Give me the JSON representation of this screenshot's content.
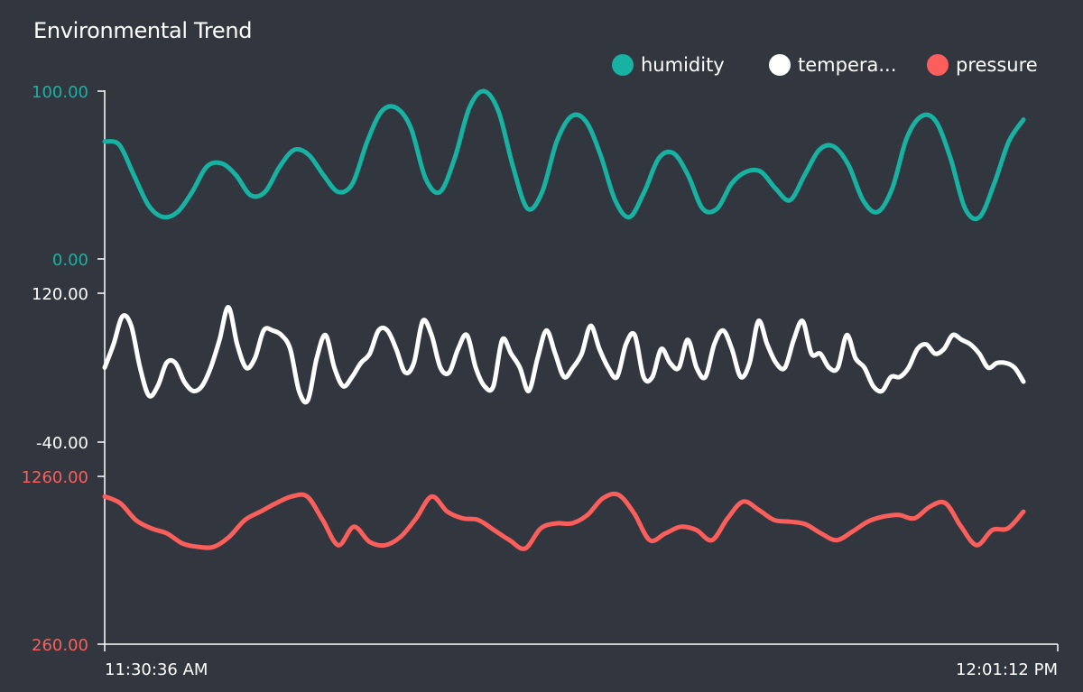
{
  "chart_data": {
    "type": "line",
    "title": "Environmental Trend",
    "x_axis": {
      "start_label": "11:30:36 AM",
      "end_label": "12:01:12 PM"
    },
    "legend": [
      {
        "name": "humidity",
        "color": "#17b2a2"
      },
      {
        "name": "tempera...",
        "color": "#ffffff"
      },
      {
        "name": "pressure",
        "color": "#fa5f5b"
      }
    ],
    "series": [
      {
        "name": "humidity",
        "color": "#17b2a2",
        "y_range": [
          0,
          100
        ],
        "tick_labels": [
          "100.00",
          "0.00"
        ],
        "values": [
          70,
          68,
          50,
          32,
          25,
          28,
          40,
          55,
          57,
          50,
          38,
          40,
          55,
          65,
          62,
          50,
          40,
          45,
          70,
          88,
          90,
          78,
          48,
          40,
          60,
          90,
          100,
          88,
          55,
          30,
          40,
          70,
          85,
          82,
          62,
          35,
          25,
          40,
          60,
          63,
          50,
          30,
          30,
          45,
          52,
          52,
          42,
          35,
          50,
          65,
          67,
          56,
          35,
          28,
          42,
          72,
          85,
          82,
          60,
          30,
          25,
          45,
          70,
          83
        ]
      },
      {
        "name": "tempera...",
        "color": "#ffffff",
        "y_range": [
          -40,
          120
        ],
        "tick_labels": [
          "120.00",
          "-40.00"
        ],
        "values": [
          40,
          65,
          95,
          85,
          40,
          10,
          20,
          45,
          45,
          25,
          15,
          20,
          40,
          70,
          105,
          65,
          40,
          50,
          80,
          80,
          75,
          60,
          15,
          5,
          50,
          75,
          40,
          20,
          30,
          45,
          55,
          80,
          80,
          60,
          35,
          45,
          90,
          75,
          40,
          35,
          60,
          75,
          40,
          20,
          20,
          70,
          55,
          40,
          15,
          50,
          80,
          55,
          30,
          40,
          55,
          85,
          60,
          40,
          30,
          65,
          75,
          30,
          30,
          60,
          45,
          40,
          70,
          40,
          30,
          65,
          80,
          60,
          30,
          45,
          90,
          65,
          45,
          40,
          70,
          90,
          55,
          55,
          40,
          40,
          75,
          50,
          40,
          20,
          15,
          30,
          30,
          40,
          60,
          65,
          55,
          60,
          75,
          70,
          65,
          55,
          40,
          45,
          45,
          40,
          25
        ]
      },
      {
        "name": "pressure",
        "color": "#fa5f5b",
        "y_range": [
          260,
          1260
        ],
        "tick_labels": [
          "1260.00",
          "260.00"
        ],
        "values": [
          1140,
          1100,
          1000,
          950,
          920,
          860,
          840,
          840,
          900,
          1000,
          1050,
          1100,
          1140,
          1140,
          1000,
          850,
          960,
          870,
          850,
          900,
          1010,
          1140,
          1050,
          1010,
          1000,
          940,
          880,
          830,
          950,
          980,
          980,
          1030,
          1130,
          1150,
          1040,
          880,
          920,
          960,
          940,
          880,
          1010,
          1110,
          1060,
          1000,
          990,
          975,
          920,
          880,
          930,
          990,
          1020,
          1030,
          1010,
          1080,
          1100,
          960,
          850,
          940,
          950,
          1050
        ]
      }
    ]
  }
}
